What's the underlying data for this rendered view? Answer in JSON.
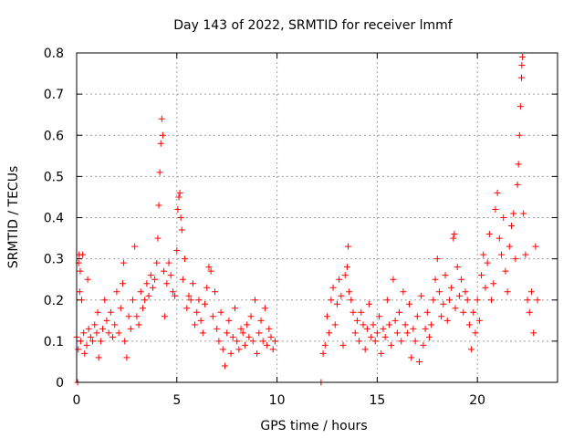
{
  "chart_data": {
    "type": "scatter",
    "title": "Day 143 of 2022, SRMTID for receiver lmmf",
    "xlabel": "GPS time / hours",
    "ylabel": "SRMTID / TECUs",
    "xlim": [
      0,
      24
    ],
    "ylim": [
      0,
      0.8
    ],
    "xticks": [
      0,
      5,
      10,
      15,
      20
    ],
    "yticks": [
      0,
      0.1,
      0.2,
      0.3,
      0.4,
      0.5,
      0.6,
      0.7,
      0.8
    ],
    "xtick_labels": [
      "0",
      "5",
      "10",
      "15",
      "20"
    ],
    "ytick_labels": [
      "0",
      "0.1",
      "0.2",
      "0.3",
      "0.4",
      "0.5",
      "0.6",
      "0.7",
      "0.8"
    ],
    "grid": true,
    "marker": "+",
    "marker_color": "#ff0000",
    "series": [
      {
        "name": "SRMTID",
        "points": [
          [
            0.0,
            0.11
          ],
          [
            0.05,
            0.0
          ],
          [
            0.08,
            0.08
          ],
          [
            0.1,
            0.29
          ],
          [
            0.12,
            0.31
          ],
          [
            0.15,
            0.22
          ],
          [
            0.18,
            0.27
          ],
          [
            0.2,
            0.1
          ],
          [
            0.25,
            0.2
          ],
          [
            0.3,
            0.31
          ],
          [
            0.35,
            0.12
          ],
          [
            0.4,
            0.07
          ],
          [
            0.5,
            0.09
          ],
          [
            0.55,
            0.25
          ],
          [
            0.6,
            0.13
          ],
          [
            0.7,
            0.11
          ],
          [
            0.8,
            0.1
          ],
          [
            0.9,
            0.14
          ],
          [
            1.0,
            0.12
          ],
          [
            1.05,
            0.17
          ],
          [
            1.1,
            0.06
          ],
          [
            1.2,
            0.1
          ],
          [
            1.3,
            0.13
          ],
          [
            1.4,
            0.2
          ],
          [
            1.5,
            0.15
          ],
          [
            1.6,
            0.12
          ],
          [
            1.7,
            0.17
          ],
          [
            1.8,
            0.11
          ],
          [
            1.9,
            0.14
          ],
          [
            2.0,
            0.22
          ],
          [
            2.1,
            0.12
          ],
          [
            2.2,
            0.18
          ],
          [
            2.3,
            0.24
          ],
          [
            2.35,
            0.29
          ],
          [
            2.4,
            0.1
          ],
          [
            2.5,
            0.06
          ],
          [
            2.6,
            0.16
          ],
          [
            2.7,
            0.13
          ],
          [
            2.8,
            0.2
          ],
          [
            2.9,
            0.33
          ],
          [
            3.0,
            0.16
          ],
          [
            3.1,
            0.14
          ],
          [
            3.2,
            0.22
          ],
          [
            3.3,
            0.18
          ],
          [
            3.4,
            0.2
          ],
          [
            3.5,
            0.24
          ],
          [
            3.6,
            0.21
          ],
          [
            3.7,
            0.26
          ],
          [
            3.8,
            0.23
          ],
          [
            3.9,
            0.25
          ],
          [
            4.0,
            0.29
          ],
          [
            4.05,
            0.35
          ],
          [
            4.1,
            0.43
          ],
          [
            4.15,
            0.51
          ],
          [
            4.2,
            0.58
          ],
          [
            4.25,
            0.64
          ],
          [
            4.3,
            0.6
          ],
          [
            4.35,
            0.27
          ],
          [
            4.4,
            0.16
          ],
          [
            4.5,
            0.24
          ],
          [
            4.6,
            0.29
          ],
          [
            4.7,
            0.26
          ],
          [
            4.8,
            0.22
          ],
          [
            4.9,
            0.21
          ],
          [
            5.0,
            0.32
          ],
          [
            5.05,
            0.42
          ],
          [
            5.1,
            0.45
          ],
          [
            5.15,
            0.46
          ],
          [
            5.2,
            0.4
          ],
          [
            5.25,
            0.37
          ],
          [
            5.3,
            0.25
          ],
          [
            5.4,
            0.3
          ],
          [
            5.5,
            0.18
          ],
          [
            5.6,
            0.21
          ],
          [
            5.7,
            0.2
          ],
          [
            5.8,
            0.24
          ],
          [
            5.9,
            0.14
          ],
          [
            6.0,
            0.17
          ],
          [
            6.1,
            0.2
          ],
          [
            6.2,
            0.15
          ],
          [
            6.3,
            0.12
          ],
          [
            6.4,
            0.19
          ],
          [
            6.5,
            0.23
          ],
          [
            6.6,
            0.28
          ],
          [
            6.7,
            0.27
          ],
          [
            6.8,
            0.16
          ],
          [
            6.9,
            0.22
          ],
          [
            7.0,
            0.13
          ],
          [
            7.1,
            0.1
          ],
          [
            7.2,
            0.17
          ],
          [
            7.3,
            0.08
          ],
          [
            7.4,
            0.04
          ],
          [
            7.5,
            0.12
          ],
          [
            7.6,
            0.15
          ],
          [
            7.7,
            0.07
          ],
          [
            7.8,
            0.11
          ],
          [
            7.9,
            0.18
          ],
          [
            8.0,
            0.1
          ],
          [
            8.1,
            0.08
          ],
          [
            8.2,
            0.13
          ],
          [
            8.3,
            0.12
          ],
          [
            8.4,
            0.09
          ],
          [
            8.5,
            0.14
          ],
          [
            8.6,
            0.11
          ],
          [
            8.7,
            0.16
          ],
          [
            8.8,
            0.1
          ],
          [
            8.9,
            0.2
          ],
          [
            9.0,
            0.07
          ],
          [
            9.1,
            0.12
          ],
          [
            9.2,
            0.15
          ],
          [
            9.3,
            0.1
          ],
          [
            9.4,
            0.18
          ],
          [
            9.5,
            0.09
          ],
          [
            9.6,
            0.13
          ],
          [
            9.7,
            0.11
          ],
          [
            9.8,
            0.08
          ],
          [
            9.9,
            0.1
          ],
          [
            12.2,
            0.0
          ],
          [
            12.3,
            0.07
          ],
          [
            12.4,
            0.09
          ],
          [
            12.5,
            0.16
          ],
          [
            12.6,
            0.12
          ],
          [
            12.7,
            0.2
          ],
          [
            12.8,
            0.23
          ],
          [
            12.9,
            0.14
          ],
          [
            13.0,
            0.19
          ],
          [
            13.1,
            0.25
          ],
          [
            13.2,
            0.21
          ],
          [
            13.3,
            0.09
          ],
          [
            13.4,
            0.26
          ],
          [
            13.5,
            0.28
          ],
          [
            13.55,
            0.33
          ],
          [
            13.6,
            0.22
          ],
          [
            13.7,
            0.2
          ],
          [
            13.8,
            0.17
          ],
          [
            13.9,
            0.12
          ],
          [
            14.0,
            0.15
          ],
          [
            14.1,
            0.1
          ],
          [
            14.2,
            0.17
          ],
          [
            14.3,
            0.14
          ],
          [
            14.4,
            0.08
          ],
          [
            14.5,
            0.13
          ],
          [
            14.6,
            0.19
          ],
          [
            14.7,
            0.11
          ],
          [
            14.8,
            0.14
          ],
          [
            14.9,
            0.1
          ],
          [
            15.0,
            0.12
          ],
          [
            15.1,
            0.16
          ],
          [
            15.2,
            0.07
          ],
          [
            15.3,
            0.13
          ],
          [
            15.4,
            0.11
          ],
          [
            15.5,
            0.2
          ],
          [
            15.6,
            0.14
          ],
          [
            15.7,
            0.09
          ],
          [
            15.8,
            0.25
          ],
          [
            15.9,
            0.15
          ],
          [
            16.0,
            0.12
          ],
          [
            16.1,
            0.17
          ],
          [
            16.2,
            0.1
          ],
          [
            16.3,
            0.22
          ],
          [
            16.4,
            0.14
          ],
          [
            16.5,
            0.12
          ],
          [
            16.6,
            0.19
          ],
          [
            16.7,
            0.06
          ],
          [
            16.8,
            0.13
          ],
          [
            16.9,
            0.1
          ],
          [
            17.0,
            0.16
          ],
          [
            17.1,
            0.05
          ],
          [
            17.2,
            0.21
          ],
          [
            17.3,
            0.09
          ],
          [
            17.4,
            0.13
          ],
          [
            17.5,
            0.17
          ],
          [
            17.6,
            0.11
          ],
          [
            17.7,
            0.14
          ],
          [
            17.8,
            0.2
          ],
          [
            17.9,
            0.25
          ],
          [
            18.0,
            0.3
          ],
          [
            18.1,
            0.22
          ],
          [
            18.2,
            0.16
          ],
          [
            18.3,
            0.19
          ],
          [
            18.4,
            0.26
          ],
          [
            18.5,
            0.15
          ],
          [
            18.6,
            0.2
          ],
          [
            18.7,
            0.23
          ],
          [
            18.8,
            0.35
          ],
          [
            18.85,
            0.36
          ],
          [
            18.9,
            0.18
          ],
          [
            19.0,
            0.28
          ],
          [
            19.1,
            0.21
          ],
          [
            19.2,
            0.25
          ],
          [
            19.3,
            0.17
          ],
          [
            19.4,
            0.22
          ],
          [
            19.5,
            0.2
          ],
          [
            19.6,
            0.14
          ],
          [
            19.7,
            0.08
          ],
          [
            19.8,
            0.17
          ],
          [
            19.9,
            0.12
          ],
          [
            20.0,
            0.2
          ],
          [
            20.1,
            0.15
          ],
          [
            20.2,
            0.26
          ],
          [
            20.3,
            0.31
          ],
          [
            20.4,
            0.23
          ],
          [
            20.5,
            0.29
          ],
          [
            20.6,
            0.36
          ],
          [
            20.7,
            0.2
          ],
          [
            20.8,
            0.24
          ],
          [
            20.9,
            0.42
          ],
          [
            21.0,
            0.46
          ],
          [
            21.1,
            0.35
          ],
          [
            21.2,
            0.31
          ],
          [
            21.3,
            0.4
          ],
          [
            21.4,
            0.27
          ],
          [
            21.5,
            0.22
          ],
          [
            21.6,
            0.33
          ],
          [
            21.7,
            0.38
          ],
          [
            21.8,
            0.41
          ],
          [
            21.9,
            0.3
          ],
          [
            22.0,
            0.48
          ],
          [
            22.05,
            0.53
          ],
          [
            22.1,
            0.6
          ],
          [
            22.15,
            0.67
          ],
          [
            22.2,
            0.74
          ],
          [
            22.22,
            0.77
          ],
          [
            22.25,
            0.79
          ],
          [
            22.3,
            0.41
          ],
          [
            22.4,
            0.31
          ],
          [
            22.5,
            0.2
          ],
          [
            22.6,
            0.17
          ],
          [
            22.7,
            0.22
          ],
          [
            22.8,
            0.12
          ],
          [
            22.9,
            0.33
          ],
          [
            23.0,
            0.2
          ]
        ]
      }
    ]
  }
}
